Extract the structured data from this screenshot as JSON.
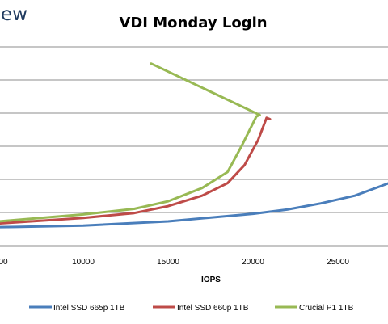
{
  "logo_fragment": "ew",
  "chart_data": {
    "type": "line",
    "title": "VDI Monday Login",
    "xlabel": "IOPS",
    "ylabel": "",
    "xlim": [
      0,
      28000
    ],
    "x_ticks": [
      0,
      10000,
      15000,
      20000,
      25000
    ],
    "x_tick_labels": [
      "00",
      "10000",
      "15000",
      "20000",
      "25000"
    ],
    "y_gridlines": 7,
    "grid": true,
    "legend_position": "bottom",
    "series": [
      {
        "name": "Intel SSD 665p 1TB",
        "color": "#4a7ebb",
        "points": [
          [
            0,
            1.0
          ],
          [
            3000,
            1.0
          ],
          [
            6000,
            1.05
          ],
          [
            10000,
            1.15
          ],
          [
            15000,
            1.45
          ],
          [
            20000,
            2.0
          ],
          [
            22000,
            2.3
          ],
          [
            24000,
            2.75
          ],
          [
            26000,
            3.3
          ],
          [
            28000,
            4.2
          ]
        ]
      },
      {
        "name": "Intel SSD 660p 1TB",
        "color": "#be4b48",
        "points": [
          [
            0,
            0.95
          ],
          [
            5000,
            1.3
          ],
          [
            10000,
            1.7
          ],
          [
            13000,
            2.05
          ],
          [
            15000,
            2.55
          ],
          [
            17000,
            3.3
          ],
          [
            18500,
            4.2
          ],
          [
            19500,
            5.5
          ],
          [
            20300,
            7.3
          ],
          [
            20800,
            8.9
          ],
          [
            21000,
            8.8
          ]
        ]
      },
      {
        "name": "Crucial P1 1TB",
        "color": "#98b954",
        "points": [
          [
            0,
            1.05
          ],
          [
            5000,
            1.45
          ],
          [
            10000,
            1.95
          ],
          [
            13000,
            2.35
          ],
          [
            15000,
            2.9
          ],
          [
            17000,
            3.85
          ],
          [
            18500,
            5.0
          ],
          [
            19300,
            6.8
          ],
          [
            20200,
            9.0
          ],
          [
            20400,
            9.1
          ],
          [
            14000,
            12.8
          ]
        ]
      }
    ]
  }
}
